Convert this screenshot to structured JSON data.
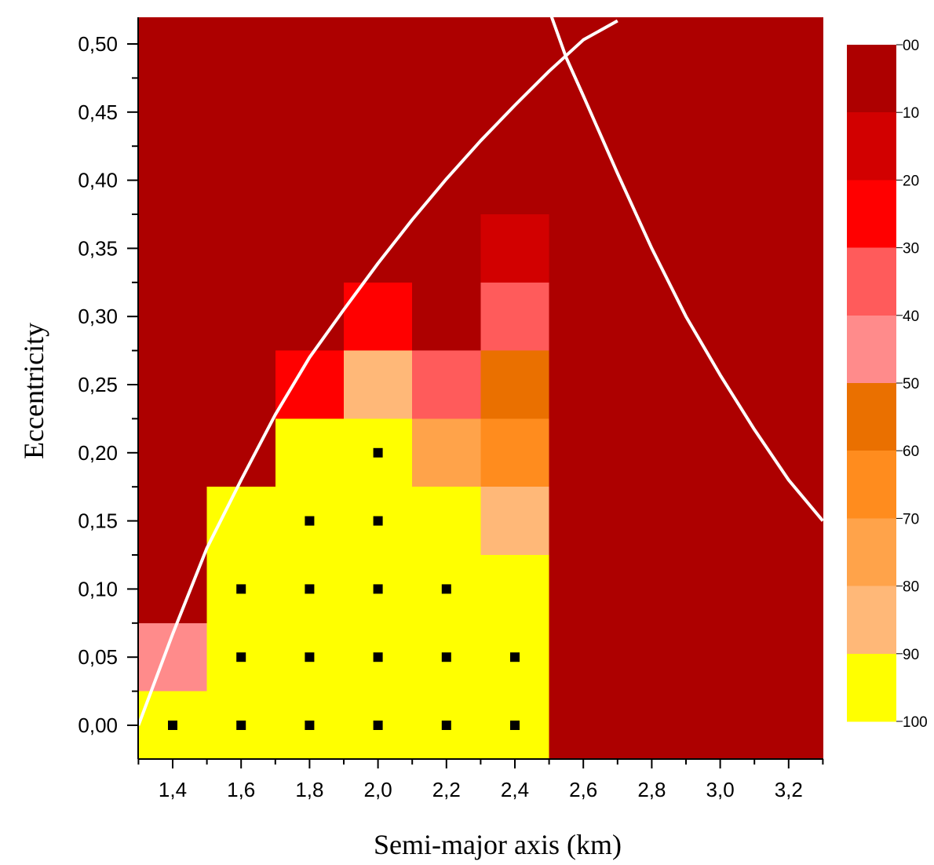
{
  "chart_data": {
    "type": "heatmap",
    "xlabel": "Semi-major axis (km)",
    "ylabel": "Eccentricity",
    "xlim": [
      1.3,
      3.3
    ],
    "ylim": [
      -0.025,
      0.52
    ],
    "x_ticks": [
      "1,4",
      "1,6",
      "1,8",
      "2,0",
      "2,2",
      "2,4",
      "2,6",
      "2,8",
      "3,0",
      "3,2"
    ],
    "x_tick_values": [
      1.4,
      1.6,
      1.8,
      2.0,
      2.2,
      2.4,
      2.6,
      2.8,
      3.0,
      3.2
    ],
    "y_ticks": [
      "0,00",
      "0,05",
      "0,10",
      "0,15",
      "0,20",
      "0,25",
      "0,30",
      "0,35",
      "0,40",
      "0,45",
      "0,50"
    ],
    "y_tick_values": [
      0.0,
      0.05,
      0.1,
      0.15,
      0.2,
      0.25,
      0.3,
      0.35,
      0.4,
      0.45,
      0.5
    ],
    "background_bin": 0,
    "cell_width": 0.2,
    "cell_height": 0.05,
    "cells": [
      {
        "x": 1.4,
        "y": 0.0,
        "bin": 9
      },
      {
        "x": 1.4,
        "y": 0.05,
        "bin": 4
      },
      {
        "x": 1.6,
        "y": 0.0,
        "bin": 9
      },
      {
        "x": 1.6,
        "y": 0.05,
        "bin": 9
      },
      {
        "x": 1.6,
        "y": 0.1,
        "bin": 9
      },
      {
        "x": 1.6,
        "y": 0.15,
        "bin": 9
      },
      {
        "x": 1.8,
        "y": 0.0,
        "bin": 9
      },
      {
        "x": 1.8,
        "y": 0.05,
        "bin": 9
      },
      {
        "x": 1.8,
        "y": 0.1,
        "bin": 9
      },
      {
        "x": 1.8,
        "y": 0.15,
        "bin": 9
      },
      {
        "x": 1.8,
        "y": 0.2,
        "bin": 9
      },
      {
        "x": 1.8,
        "y": 0.25,
        "bin": 2
      },
      {
        "x": 2.0,
        "y": 0.0,
        "bin": 9
      },
      {
        "x": 2.0,
        "y": 0.05,
        "bin": 9
      },
      {
        "x": 2.0,
        "y": 0.1,
        "bin": 9
      },
      {
        "x": 2.0,
        "y": 0.15,
        "bin": 9
      },
      {
        "x": 2.0,
        "y": 0.2,
        "bin": 9
      },
      {
        "x": 2.0,
        "y": 0.25,
        "bin": 8
      },
      {
        "x": 2.0,
        "y": 0.3,
        "bin": 2
      },
      {
        "x": 2.2,
        "y": 0.0,
        "bin": 9
      },
      {
        "x": 2.2,
        "y": 0.05,
        "bin": 9
      },
      {
        "x": 2.2,
        "y": 0.1,
        "bin": 9
      },
      {
        "x": 2.2,
        "y": 0.15,
        "bin": 9
      },
      {
        "x": 2.2,
        "y": 0.2,
        "bin": 7
      },
      {
        "x": 2.2,
        "y": 0.25,
        "bin": 3
      },
      {
        "x": 2.4,
        "y": 0.0,
        "bin": 9
      },
      {
        "x": 2.4,
        "y": 0.05,
        "bin": 9
      },
      {
        "x": 2.4,
        "y": 0.1,
        "bin": 9
      },
      {
        "x": 2.4,
        "y": 0.15,
        "bin": 8
      },
      {
        "x": 2.4,
        "y": 0.2,
        "bin": 6
      },
      {
        "x": 2.4,
        "y": 0.25,
        "bin": 5
      },
      {
        "x": 2.4,
        "y": 0.3,
        "bin": 3
      },
      {
        "x": 2.4,
        "y": 0.35,
        "bin": 1
      }
    ],
    "markers": [
      {
        "x": 1.4,
        "y": 0.0
      },
      {
        "x": 1.6,
        "y": 0.0
      },
      {
        "x": 1.6,
        "y": 0.05
      },
      {
        "x": 1.6,
        "y": 0.1
      },
      {
        "x": 1.8,
        "y": 0.0
      },
      {
        "x": 1.8,
        "y": 0.05
      },
      {
        "x": 1.8,
        "y": 0.1
      },
      {
        "x": 1.8,
        "y": 0.15
      },
      {
        "x": 2.0,
        "y": 0.0
      },
      {
        "x": 2.0,
        "y": 0.05
      },
      {
        "x": 2.0,
        "y": 0.1
      },
      {
        "x": 2.0,
        "y": 0.15
      },
      {
        "x": 2.0,
        "y": 0.2
      },
      {
        "x": 2.2,
        "y": 0.0
      },
      {
        "x": 2.2,
        "y": 0.05
      },
      {
        "x": 2.2,
        "y": 0.1
      },
      {
        "x": 2.4,
        "y": 0.0
      },
      {
        "x": 2.4,
        "y": 0.05
      }
    ],
    "curves": [
      {
        "x": [
          1.3,
          1.4,
          1.5,
          1.6,
          1.7,
          1.8,
          1.9,
          2.0,
          2.1,
          2.2,
          2.3,
          2.4,
          2.5,
          2.6,
          2.7
        ],
        "y": [
          0.0,
          0.067,
          0.13,
          0.18,
          0.228,
          0.27,
          0.305,
          0.339,
          0.371,
          0.401,
          0.429,
          0.455,
          0.48,
          0.503,
          0.517
        ]
      },
      {
        "x": [
          2.5,
          2.55,
          2.6,
          2.7,
          2.8,
          2.9,
          3.0,
          3.1,
          3.2,
          3.3
        ],
        "y": [
          0.525,
          0.49,
          0.462,
          0.405,
          0.35,
          0.3,
          0.257,
          0.217,
          0.18,
          0.15
        ]
      }
    ],
    "colorbar": {
      "labels": [
        "00",
        "10",
        "20",
        "30",
        "40",
        "50",
        "60",
        "70",
        "80",
        "90",
        "100"
      ],
      "colors": [
        "#ad0000",
        "#d20000",
        "#ff0000",
        "#ff5b5b",
        "#ff8b8b",
        "#ea7000",
        "#ff8c1e",
        "#ffa34a",
        "#ffb878",
        "#ffff00"
      ]
    },
    "grid": false
  }
}
